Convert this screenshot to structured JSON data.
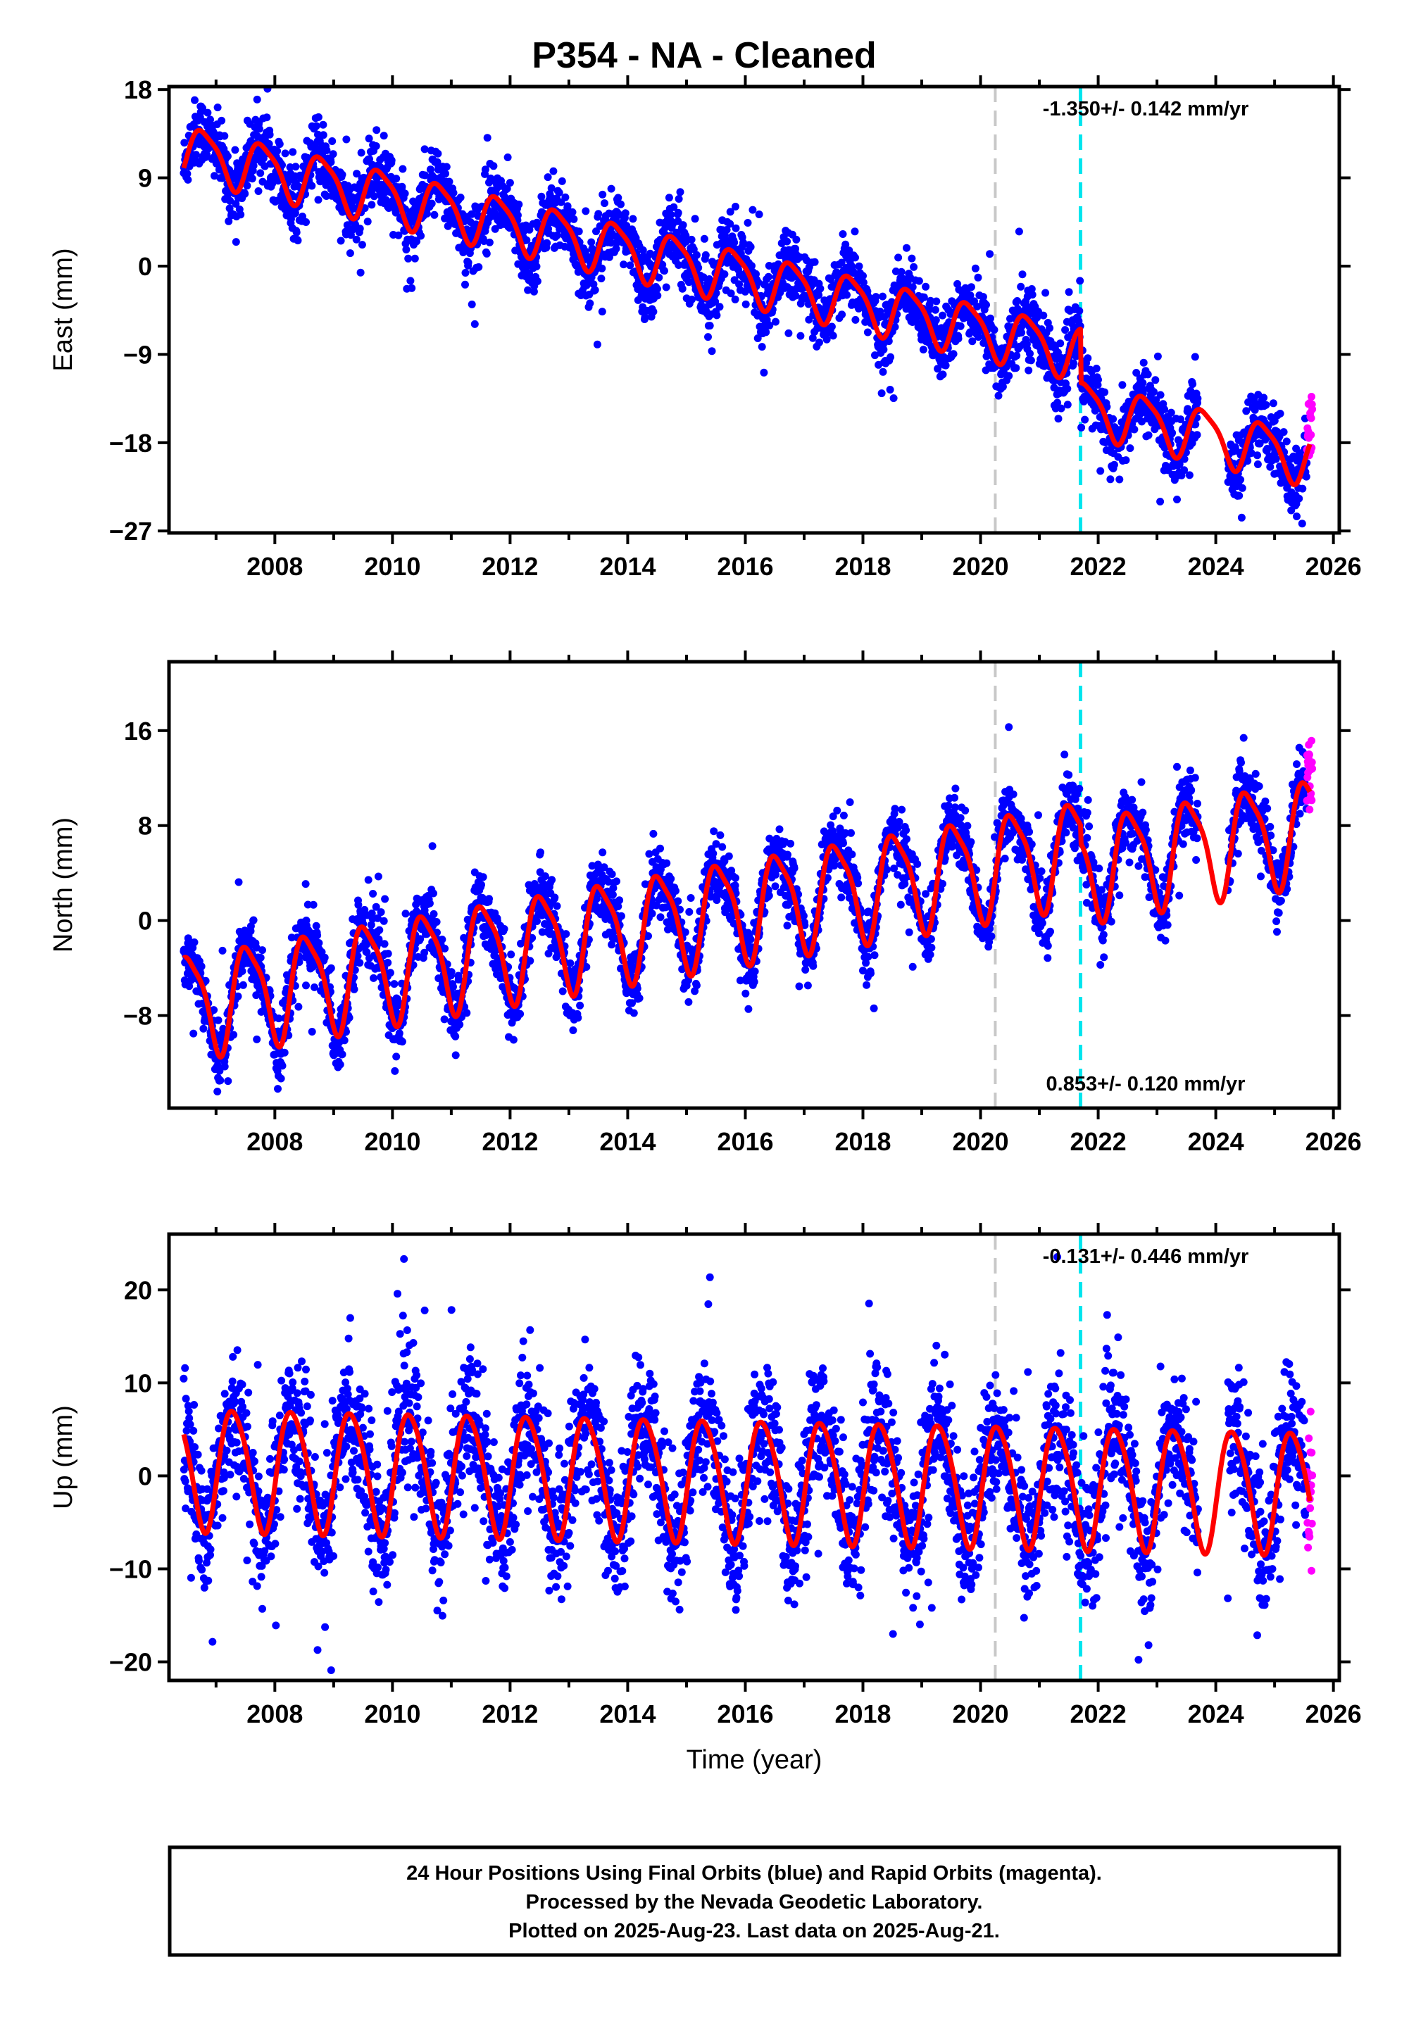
{
  "title": "P354  - NA - Cleaned",
  "colors": {
    "final": "#0000ff",
    "rapid": "#ff00ff",
    "model": "#ff0000",
    "event_gray": "#c8c8c8",
    "event_cyan": "#00e5ee"
  },
  "chart_data": [
    {
      "type": "scatter",
      "id": "east",
      "ylabel": "East (mm)",
      "xlim": [
        2006.2,
        2026.1
      ],
      "ylim": [
        -27.2,
        18.3
      ],
      "yticks": [
        18,
        9,
        0,
        -9,
        -18,
        -27
      ],
      "yticklabels": [
        "18",
        "9",
        "0",
        "−9",
        "−18",
        "−27"
      ],
      "xticks": [
        2008,
        2010,
        2012,
        2014,
        2016,
        2018,
        2020,
        2022,
        2024,
        2026
      ],
      "rate_label": "-1.350+/- 0.142 mm/yr",
      "rate_position": "top-right",
      "event_lines": [
        2020.25,
        2021.7
      ],
      "model": {
        "t0": 2006.45,
        "t1": 2025.6,
        "offset0": 11.8,
        "trend": -1.35,
        "amp_annual": 2.6,
        "amp_semi": 0.6,
        "phase": 0.55,
        "steps": [
          {
            "t": 2021.7,
            "delta": -5.5
          }
        ],
        "gaps": [
          [
            2023.7,
            2024.2
          ]
        ]
      },
      "series": [
        {
          "name": "Final Orbits",
          "color": "#0000ff",
          "data_range": [
            2006.45,
            2025.55
          ],
          "noise": 1.7,
          "gaps": [
            [
              2023.7,
              2024.2
            ]
          ]
        },
        {
          "name": "Rapid Orbits",
          "color": "#ff00ff",
          "data_range": [
            2025.55,
            2025.64
          ],
          "noise": 1.8
        }
      ]
    },
    {
      "type": "scatter",
      "id": "north",
      "ylabel": "North (mm)",
      "xlim": [
        2006.2,
        2026.1
      ],
      "ylim": [
        -15.8,
        21.8
      ],
      "yticks": [
        16,
        8,
        0,
        -8
      ],
      "yticklabels": [
        "16",
        "8",
        "0",
        "−8"
      ],
      "xticks": [
        2008,
        2010,
        2012,
        2014,
        2016,
        2018,
        2020,
        2022,
        2024,
        2026
      ],
      "rate_label": "0.853+/- 0.120 mm/yr",
      "rate_position": "bottom-right",
      "event_lines": [
        2020.25,
        2021.7
      ],
      "model": {
        "t0": 2006.45,
        "t1": 2025.6,
        "offset0": -7.0,
        "trend": 0.853,
        "amp_annual": 4.2,
        "amp_semi": 1.0,
        "phase": 0.3,
        "steps": [
          {
            "t": 2021.7,
            "delta": -1.5
          }
        ],
        "gaps": [
          [
            2023.7,
            2024.2
          ]
        ]
      },
      "series": [
        {
          "name": "Final Orbits",
          "color": "#0000ff",
          "data_range": [
            2006.45,
            2025.55
          ],
          "noise": 1.4,
          "gaps": [
            [
              2023.7,
              2024.2
            ]
          ]
        },
        {
          "name": "Rapid Orbits",
          "color": "#ff00ff",
          "data_range": [
            2025.55,
            2025.64
          ],
          "noise": 1.8
        }
      ]
    },
    {
      "type": "scatter",
      "id": "up",
      "ylabel": "Up (mm)",
      "xlabel": "Time (year)",
      "xlim": [
        2006.2,
        2026.1
      ],
      "ylim": [
        -22.0,
        26.0
      ],
      "yticks": [
        20,
        10,
        0,
        -10,
        -20
      ],
      "yticklabels": [
        "20",
        "10",
        "0",
        "−10",
        "−20"
      ],
      "xticks": [
        2008,
        2010,
        2012,
        2014,
        2016,
        2018,
        2020,
        2022,
        2024,
        2026
      ],
      "rate_label": "-0.131+/- 0.446 mm/yr",
      "rate_position": "top-right",
      "event_lines": [
        2020.25,
        2021.7
      ],
      "model": {
        "t0": 2006.45,
        "t1": 2025.6,
        "offset0": 1.0,
        "trend": -0.131,
        "amp_annual": 6.5,
        "amp_semi": 0.8,
        "phase": 0.05,
        "steps": [],
        "gaps": [
          [
            2023.7,
            2024.2
          ]
        ]
      },
      "series": [
        {
          "name": "Final Orbits",
          "color": "#0000ff",
          "data_range": [
            2006.45,
            2025.55
          ],
          "noise": 3.6,
          "gaps": [
            [
              2023.7,
              2024.2
            ]
          ]
        },
        {
          "name": "Rapid Orbits",
          "color": "#ff00ff",
          "data_range": [
            2025.55,
            2025.64
          ],
          "noise": 4.0
        }
      ]
    }
  ],
  "footer": {
    "line1": "24 Hour Positions Using Final Orbits (blue) and Rapid Orbits (magenta).",
    "line2": "Processed by the Nevada Geodetic Laboratory.",
    "line3": "Plotted on 2025-Aug-23. Last data on 2025-Aug-21."
  }
}
